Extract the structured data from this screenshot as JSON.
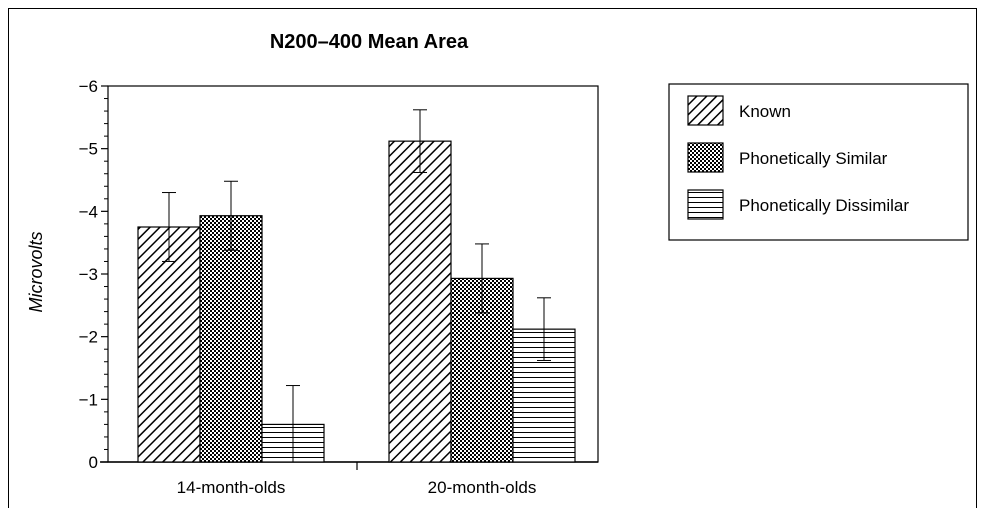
{
  "chart_data": {
    "type": "bar",
    "title": "N200–400 Mean Area",
    "ylabel": "Microvolts",
    "xlabel": "",
    "categories": [
      "14-month-olds",
      "20-month-olds"
    ],
    "series": [
      {
        "name": "Known",
        "pattern": "diagonal",
        "values": [
          -3.75,
          -5.12
        ],
        "error": [
          0.55,
          0.5
        ]
      },
      {
        "name": "Phonetically Similar",
        "pattern": "checker",
        "values": [
          -3.93,
          -2.93
        ],
        "error": [
          0.55,
          0.55
        ]
      },
      {
        "name": "Phonetically Dissimilar",
        "pattern": "horizontal",
        "values": [
          -0.6,
          -2.12
        ],
        "error": [
          0.62,
          0.5
        ]
      }
    ],
    "ylim": [
      0,
      -6
    ],
    "yticks": [
      0,
      -1,
      -2,
      -3,
      -4,
      -5,
      -6
    ],
    "ytick_labels": [
      "0",
      "−1",
      "−2",
      "−3",
      "−4",
      "−5",
      "−6"
    ],
    "grid": false,
    "legend_position": "right"
  }
}
